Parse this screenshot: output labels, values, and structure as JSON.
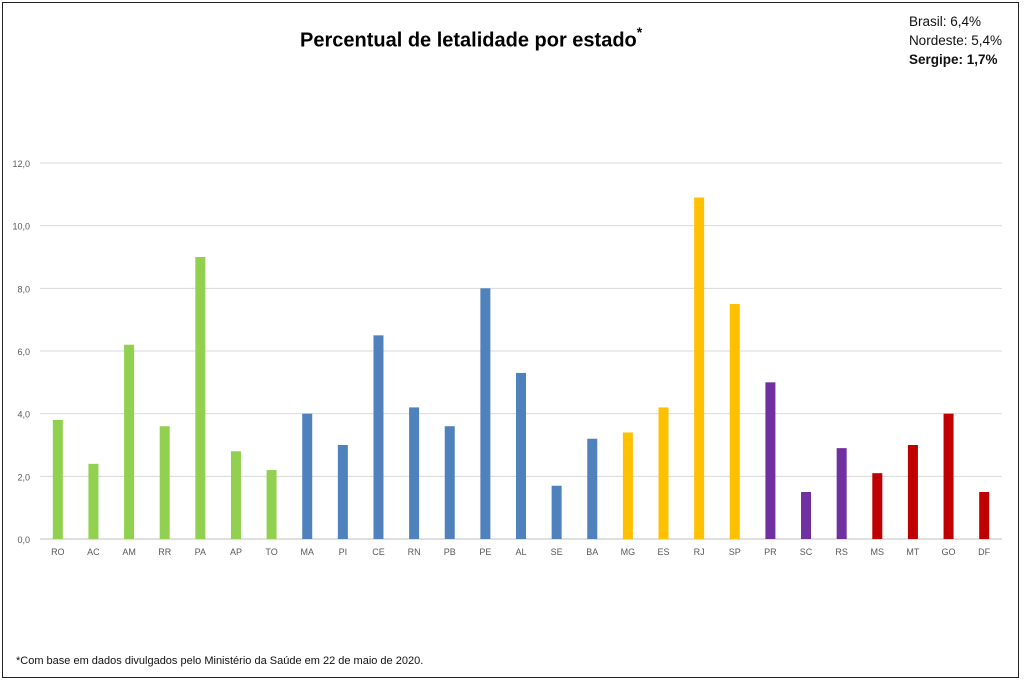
{
  "title": "Percentual de letalidade por estado",
  "title_mark": "*",
  "stats": {
    "brasil": "Brasil: 6,4%",
    "nordeste": "Nordeste: 5,4%",
    "sergipe": "Sergipe: 1,7%"
  },
  "footnote": "*Com base em dados divulgados pelo Ministério da Saúde em 22 de maio de 2020.",
  "chart_data": {
    "type": "bar",
    "title": "Percentual de letalidade por estado",
    "xlabel": "",
    "ylabel": "",
    "ylim": [
      0,
      12
    ],
    "yticks": [
      "0,0",
      "2,0",
      "4,0",
      "6,0",
      "8,0",
      "10,0",
      "12,0"
    ],
    "grid": true,
    "categories": [
      "RO",
      "AC",
      "AM",
      "RR",
      "PA",
      "AP",
      "TO",
      "MA",
      "PI",
      "CE",
      "RN",
      "PB",
      "PE",
      "AL",
      "SE",
      "BA",
      "MG",
      "ES",
      "RJ",
      "SP",
      "PR",
      "SC",
      "RS",
      "MS",
      "MT",
      "GO",
      "DF"
    ],
    "values": [
      3.8,
      2.4,
      6.2,
      3.6,
      9.0,
      2.8,
      2.2,
      4.0,
      3.0,
      6.5,
      4.2,
      3.6,
      8.0,
      5.3,
      1.7,
      3.2,
      3.4,
      4.2,
      10.9,
      7.5,
      5.0,
      1.5,
      2.9,
      2.1,
      3.0,
      4.0,
      1.5
    ],
    "colors": [
      "#92d050",
      "#92d050",
      "#92d050",
      "#92d050",
      "#92d050",
      "#92d050",
      "#92d050",
      "#4f81bd",
      "#4f81bd",
      "#4f81bd",
      "#4f81bd",
      "#4f81bd",
      "#4f81bd",
      "#4f81bd",
      "#4f81bd",
      "#4f81bd",
      "#ffc000",
      "#ffc000",
      "#ffc000",
      "#ffc000",
      "#7030a0",
      "#7030a0",
      "#7030a0",
      "#c00000",
      "#c00000",
      "#c00000",
      "#c00000"
    ]
  }
}
